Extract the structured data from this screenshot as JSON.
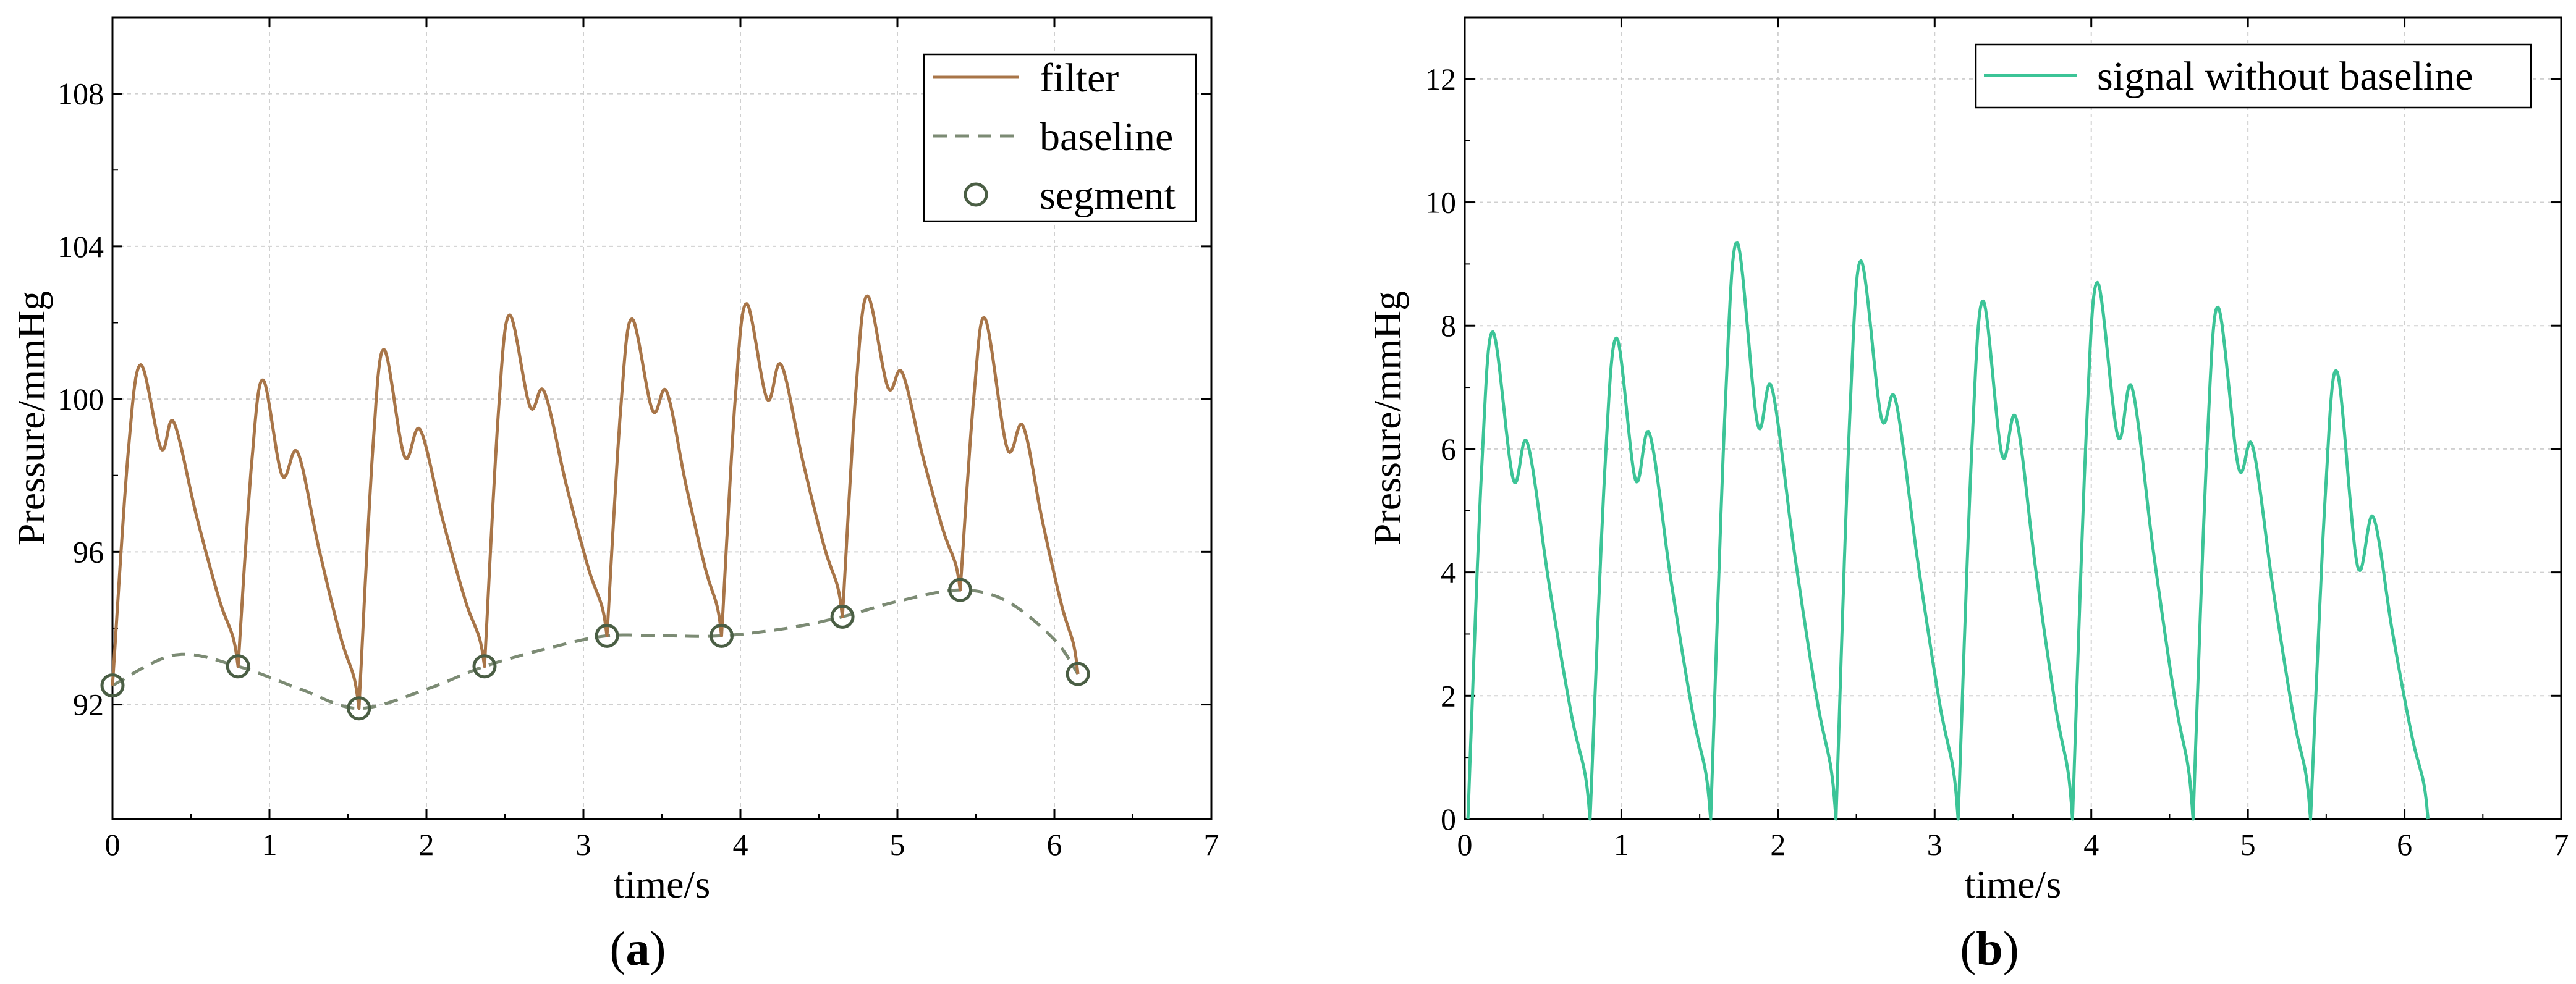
{
  "chart_data": [
    {
      "type": "line",
      "panel_label": "a",
      "title": "",
      "xlabel": "time/s",
      "ylabel": "Pressure/mmHg",
      "xlim": [
        0,
        7
      ],
      "ylim": [
        89,
        110
      ],
      "xticks": [
        0,
        1,
        2,
        3,
        4,
        5,
        6,
        7
      ],
      "yticks": [
        92,
        96,
        100,
        104,
        108
      ],
      "grid": true,
      "legend_position": "top-right",
      "series": [
        {
          "name": "filter",
          "style": "solid",
          "color": "#A87548",
          "beats": [
            {
              "start": [
                0.0,
                92.5
              ],
              "peak": [
                0.18,
                100.9
              ],
              "notch": [
                0.31,
                98.7
              ],
              "second": [
                0.39,
                99.4
              ],
              "end": [
                0.8,
                93.0
              ]
            },
            {
              "start": [
                0.8,
                93.0
              ],
              "peak": [
                0.96,
                100.5
              ],
              "notch": [
                1.08,
                98.0
              ],
              "second": [
                1.18,
                98.6
              ],
              "end": [
                1.57,
                91.9
              ]
            },
            {
              "start": [
                1.57,
                91.9
              ],
              "peak": [
                1.73,
                101.3
              ],
              "notch": [
                1.86,
                98.5
              ],
              "second": [
                1.96,
                99.2
              ],
              "end": [
                2.37,
                93.0
              ]
            },
            {
              "start": [
                2.37,
                93.0
              ],
              "peak": [
                2.53,
                102.2
              ],
              "notch": [
                2.66,
                99.8
              ],
              "second": [
                2.75,
                100.2
              ],
              "end": [
                3.15,
                93.8
              ]
            },
            {
              "start": [
                3.15,
                93.8
              ],
              "peak": [
                3.31,
                102.1
              ],
              "notch": [
                3.44,
                99.7
              ],
              "second": [
                3.53,
                100.2
              ],
              "end": [
                3.88,
                93.8
              ]
            },
            {
              "start": [
                3.88,
                93.8
              ],
              "peak": [
                4.04,
                102.5
              ],
              "notch": [
                4.17,
                100.0
              ],
              "second": [
                4.26,
                100.9
              ],
              "end": [
                4.65,
                94.3
              ]
            },
            {
              "start": [
                4.65,
                94.3
              ],
              "peak": [
                4.81,
                102.7
              ],
              "notch": [
                4.94,
                100.3
              ],
              "second": [
                5.03,
                100.7
              ],
              "end": [
                5.4,
                95.0
              ]
            },
            {
              "start": [
                5.4,
                95.0
              ],
              "peak": [
                5.56,
                102.1
              ],
              "notch": [
                5.7,
                98.7
              ],
              "second": [
                5.8,
                99.3
              ],
              "end": [
                6.15,
                92.8
              ]
            }
          ]
        },
        {
          "name": "baseline",
          "style": "dashed",
          "color": "#7C8B74",
          "x": [
            0.0,
            0.4,
            0.8,
            1.2,
            1.57,
            2.0,
            2.37,
            2.8,
            3.15,
            3.5,
            3.88,
            4.3,
            4.65,
            5.0,
            5.4,
            5.7,
            6.0,
            6.15
          ],
          "y": [
            92.5,
            93.3,
            93.0,
            92.4,
            91.9,
            92.4,
            93.0,
            93.5,
            93.8,
            93.8,
            93.8,
            94.0,
            94.3,
            94.7,
            95.0,
            94.7,
            93.7,
            92.8
          ]
        },
        {
          "name": "segment",
          "style": "markers",
          "color": "#4A5E44",
          "x": [
            0.0,
            0.8,
            1.57,
            2.37,
            3.15,
            3.88,
            4.65,
            5.4,
            6.15
          ],
          "y": [
            92.5,
            93.0,
            91.9,
            93.0,
            93.8,
            93.8,
            94.3,
            95.0,
            92.8
          ]
        }
      ]
    },
    {
      "type": "line",
      "panel_label": "b",
      "title": "",
      "xlabel": "time/s",
      "ylabel": "Pressure/mmHg",
      "xlim": [
        0,
        7
      ],
      "ylim": [
        0,
        13
      ],
      "xticks": [
        0,
        1,
        2,
        3,
        4,
        5,
        6,
        7
      ],
      "yticks": [
        0,
        2,
        4,
        6,
        8,
        10,
        12
      ],
      "grid": true,
      "legend_position": "top-right",
      "series": [
        {
          "name": "signal without baseline",
          "style": "solid",
          "color": "#3CC497",
          "beats": [
            {
              "start": [
                0.02,
                0.0
              ],
              "peak": [
                0.18,
                7.9
              ],
              "notch": [
                0.31,
                5.5
              ],
              "second": [
                0.4,
                6.1
              ],
              "end": [
                0.8,
                0.0
              ]
            },
            {
              "start": [
                0.8,
                0.0
              ],
              "peak": [
                0.97,
                7.8
              ],
              "notch": [
                1.09,
                5.5
              ],
              "second": [
                1.18,
                6.25
              ],
              "end": [
                1.57,
                0.0
              ]
            },
            {
              "start": [
                1.57,
                0.0
              ],
              "peak": [
                1.74,
                9.35
              ],
              "notch": [
                1.87,
                6.4
              ],
              "second": [
                1.96,
                7.0
              ],
              "end": [
                2.37,
                0.0
              ]
            },
            {
              "start": [
                2.37,
                0.0
              ],
              "peak": [
                2.53,
                9.05
              ],
              "notch": [
                2.66,
                6.5
              ],
              "second": [
                2.75,
                6.8
              ],
              "end": [
                3.15,
                0.0
              ]
            },
            {
              "start": [
                3.15,
                0.0
              ],
              "peak": [
                3.31,
                8.4
              ],
              "notch": [
                3.43,
                5.9
              ],
              "second": [
                3.52,
                6.5
              ],
              "end": [
                3.88,
                0.0
              ]
            },
            {
              "start": [
                3.88,
                0.0
              ],
              "peak": [
                4.04,
                8.7
              ],
              "notch": [
                4.17,
                6.2
              ],
              "second": [
                4.26,
                7.0
              ],
              "end": [
                4.65,
                0.0
              ]
            },
            {
              "start": [
                4.65,
                0.0
              ],
              "peak": [
                4.81,
                8.3
              ],
              "notch": [
                4.94,
                5.7
              ],
              "second": [
                5.03,
                6.05
              ],
              "end": [
                5.4,
                0.0
              ]
            },
            {
              "start": [
                5.4,
                0.0
              ],
              "peak": [
                5.57,
                7.25
              ],
              "notch": [
                5.7,
                4.1
              ],
              "second": [
                5.8,
                4.9
              ],
              "end": [
                6.15,
                0.0
              ]
            }
          ]
        }
      ]
    }
  ]
}
